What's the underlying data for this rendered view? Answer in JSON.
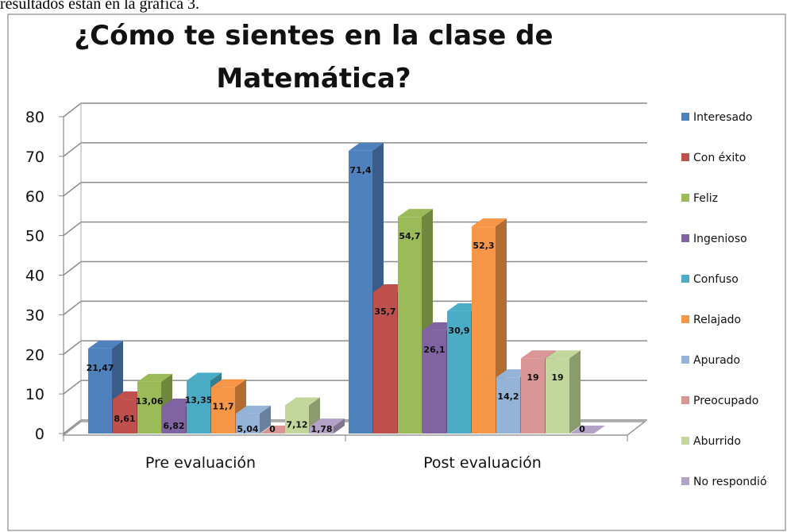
{
  "caption_text": "resultados están en la gráfica 3.",
  "chart_data": {
    "type": "bar3d",
    "title": [
      "¿Cómo te sientes en la clase de",
      "Matemática?"
    ],
    "categories": [
      "Pre evaluación",
      "Post evaluación"
    ],
    "series": [
      {
        "name": "Interesado",
        "color": "#4f81bd",
        "values": [
          21.47,
          71.4
        ],
        "value_labels": [
          "21,47",
          "71,4"
        ]
      },
      {
        "name": "Con éxito",
        "color": "#c0504d",
        "values": [
          8.61,
          35.7
        ],
        "value_labels": [
          "8,61",
          "35,7"
        ]
      },
      {
        "name": "Feliz",
        "color": "#9bbb59",
        "values": [
          13.06,
          54.7
        ],
        "value_labels": [
          "13,06",
          "54,7"
        ]
      },
      {
        "name": "Ingenioso",
        "color": "#8064a2",
        "values": [
          6.82,
          26.1
        ],
        "value_labels": [
          "6,82",
          "26,1"
        ]
      },
      {
        "name": "Confuso",
        "color": "#4bacc6",
        "values": [
          13.35,
          30.9
        ],
        "value_labels": [
          "13,35",
          "30,9"
        ]
      },
      {
        "name": "Relajado",
        "color": "#f79646",
        "values": [
          11.7,
          52.3
        ],
        "value_labels": [
          "11,7",
          "52,3"
        ]
      },
      {
        "name": "Apurado",
        "color": "#95b3d7",
        "values": [
          5.04,
          14.2
        ],
        "value_labels": [
          "5,04",
          "14,2"
        ]
      },
      {
        "name": "Preocupado",
        "color": "#d99694",
        "values": [
          0,
          19
        ],
        "value_labels": [
          "0",
          "19"
        ]
      },
      {
        "name": "Aburrido",
        "color": "#c3d69b",
        "values": [
          7.12,
          19
        ],
        "value_labels": [
          "7,12",
          "19"
        ]
      },
      {
        "name": "No respondió",
        "color": "#b3a2c7",
        "values": [
          1.78,
          0
        ],
        "value_labels": [
          "1,78",
          "0"
        ]
      }
    ],
    "ylim": [
      0,
      80
    ],
    "yticks": [
      0,
      10,
      20,
      30,
      40,
      50,
      60,
      70,
      80
    ],
    "grid": true,
    "legend": "right"
  }
}
